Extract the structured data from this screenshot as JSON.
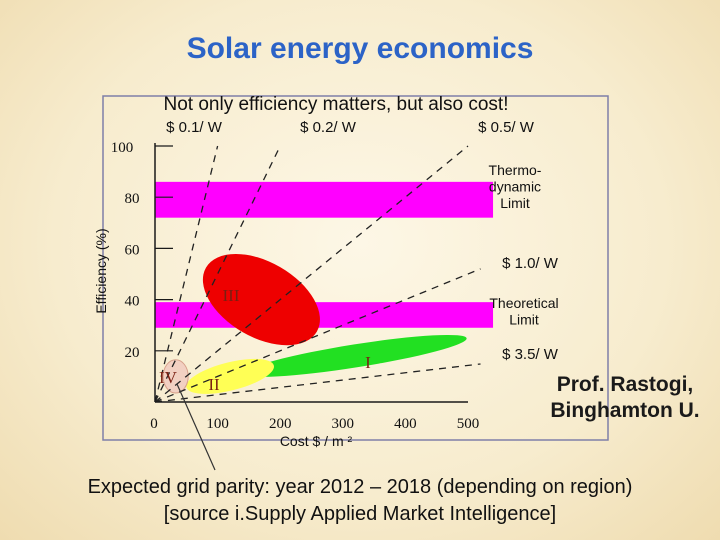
{
  "slide": {
    "title": "Solar energy economics",
    "credit_line1": "Prof. Rastogi,",
    "credit_line2": "Binghamton U.",
    "footer_line1": "Expected grid parity: year 2012 – 2018 (depending on region)",
    "footer_line2": "[source i.Supply Applied Market Intelligence]"
  },
  "chart_data": {
    "type": "scatter",
    "title": "Not only efficiency matters, but also cost!",
    "xlabel": "Cost $ / m ²",
    "ylabel": "Efficiency (%)",
    "xlim": [
      0,
      500
    ],
    "ylim": [
      0,
      100
    ],
    "x_ticks": [
      0,
      100,
      200,
      300,
      400,
      500
    ],
    "y_ticks": [
      20,
      40,
      60,
      80,
      100
    ],
    "limits": [
      {
        "name": "thermo",
        "label_lines": [
          "Thermo-",
          "dynamic",
          "Limit"
        ],
        "y_from": 72,
        "y_to": 86,
        "x_to": 540,
        "color": "#ff00ff"
      },
      {
        "name": "theoretical",
        "label_lines": [
          "Theoretical",
          "Limit"
        ],
        "y_from": 29,
        "y_to": 39,
        "x_to": 540,
        "color": "#ff00ff"
      }
    ],
    "cost_lines": [
      {
        "label": "$ 0.1/ W",
        "dollars_per_watt": 0.1
      },
      {
        "label": "$ 0.2/ W",
        "dollars_per_watt": 0.2
      },
      {
        "label": "$ 0.5/ W",
        "dollars_per_watt": 0.5
      },
      {
        "label": "$ 1.0/ W",
        "dollars_per_watt": 1.0
      },
      {
        "label": "$ 3.5/ W",
        "dollars_per_watt": 3.5
      }
    ],
    "regions": [
      {
        "name": "I",
        "label": "I",
        "x_center": 320,
        "y_center": 18,
        "x_radius": 180,
        "y_radius": 4.5,
        "rotation_deg": -9,
        "color": "#22e022"
      },
      {
        "name": "II",
        "label": "II",
        "x_center": 120,
        "y_center": 10,
        "x_radius": 72,
        "y_radius": 5.5,
        "rotation_deg": -14,
        "color": "#ffff55"
      },
      {
        "name": "III",
        "label": "III",
        "x_center": 170,
        "y_center": 40,
        "x_radius": 60,
        "y_radius": 25,
        "rotation_deg": -60,
        "color": "#ee0000"
      },
      {
        "name": "IV",
        "label": "IV",
        "x_center": 33,
        "y_center": 10,
        "x_radius": 20,
        "y_radius": 6.5,
        "rotation_deg": 0,
        "color": "#f2d0c2"
      }
    ],
    "colors": {
      "axis": "#1a1a1a",
      "cost_line": "#222222",
      "region_label": "#7a1f12",
      "panel_border": "#7f7fa8",
      "title_color": "#2c63c7"
    }
  }
}
